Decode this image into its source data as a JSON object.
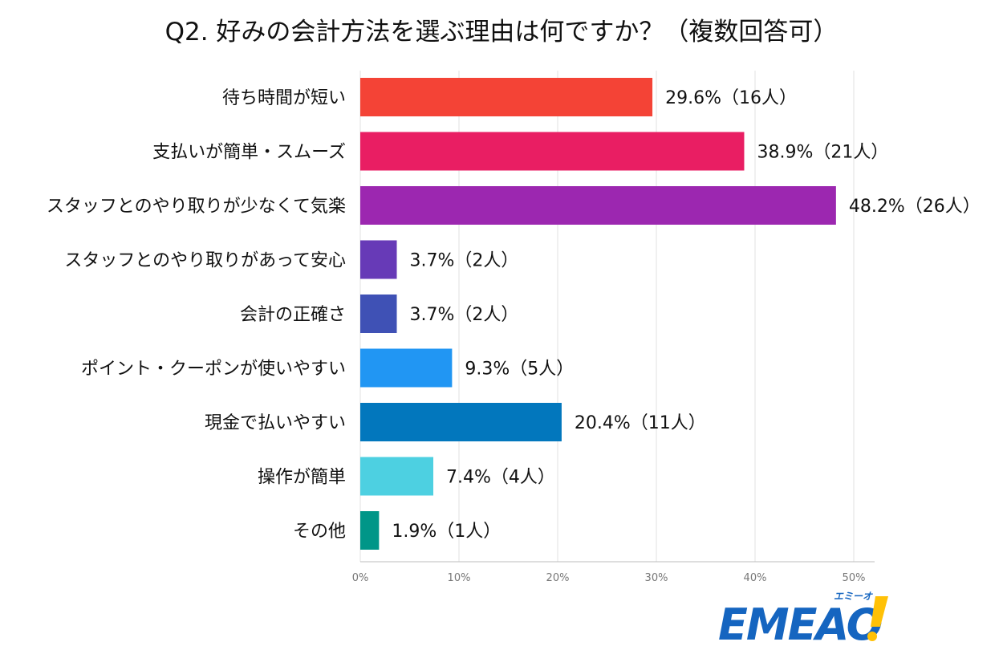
{
  "chart_data": {
    "type": "bar",
    "orientation": "horizontal",
    "title": "Q2. 好みの会計方法を選ぶ理由は何ですか？（複数回答可）",
    "categories": [
      "待ち時間が短い",
      "支払いが簡単・スムーズ",
      "スタッフとのやり取りが少なくて気楽",
      "スタッフとのやり取りがあって安心",
      "会計の正確さ",
      "ポイント・クーポンが使いやすい",
      "現金で払いやすい",
      "操作が簡単",
      "その他"
    ],
    "values": [
      29.6,
      38.9,
      48.2,
      3.7,
      3.7,
      9.3,
      20.4,
      7.4,
      1.9
    ],
    "data_labels": [
      "29.6%（16人）",
      "38.9%（21人）",
      "48.2%（26人）",
      "3.7%（2人）",
      "3.7%（2人）",
      "9.3%（5人）",
      "20.4%（11人）",
      "7.4%（4人）",
      "1.9%（1人）"
    ],
    "colors": [
      "#f44336",
      "#e91e63",
      "#9c27b0",
      "#673ab7",
      "#3f51b5",
      "#2196f3",
      "#0277bd",
      "#4dd0e1",
      "#009688"
    ],
    "xlim": [
      0,
      50
    ],
    "xticks": [
      "0%",
      "10%",
      "20%",
      "30%",
      "40%",
      "50%"
    ],
    "grid": true
  },
  "brand": {
    "logo_text": "EMEAO!",
    "logo_ruby": "エミーオ",
    "logo_color": "#1565c0",
    "accent_color": "#ffc107"
  }
}
